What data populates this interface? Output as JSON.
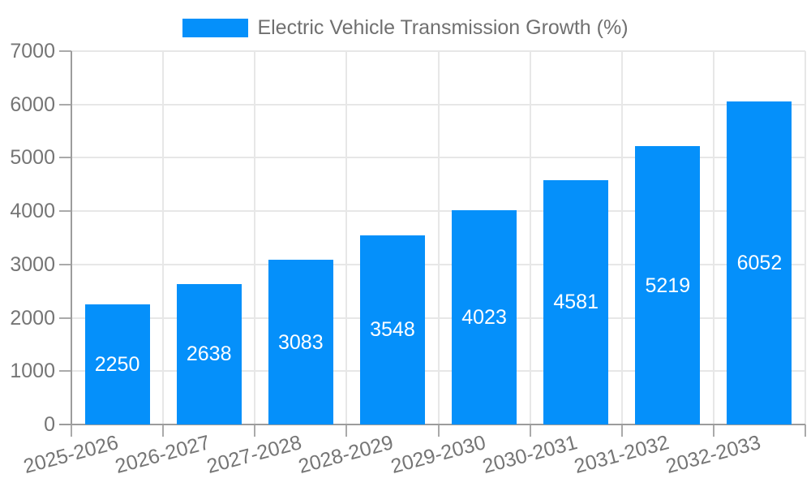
{
  "chart_data": {
    "type": "bar",
    "title": "Electric Vehicle Transmission Growth (%)",
    "legend_entries": [
      "Electric Vehicle Transmission Growth (%)"
    ],
    "legend_position": "top-center",
    "categories": [
      "2025-2026",
      "2026-2027",
      "2027-2028",
      "2028-2029",
      "2029-2030",
      "2030-2031",
      "2031-2032",
      "2032-2033"
    ],
    "values": [
      2250,
      2638,
      3083,
      3548,
      4023,
      4581,
      5219,
      6052
    ],
    "value_labels": "inside-center",
    "xlabel": "",
    "ylabel": "",
    "ylim": [
      0,
      7000
    ],
    "yticks": [
      0,
      1000,
      2000,
      3000,
      4000,
      5000,
      6000,
      7000
    ],
    "xtick_rotation_deg": -15,
    "grid": true,
    "colors": {
      "bar": "#0590FA",
      "grid": "#e7e7e7",
      "axis": "#9c9c9c",
      "tick_text": "#757575",
      "legend_text": "#707070",
      "value_label_text": "#ffffff",
      "background": "#ffffff"
    }
  }
}
